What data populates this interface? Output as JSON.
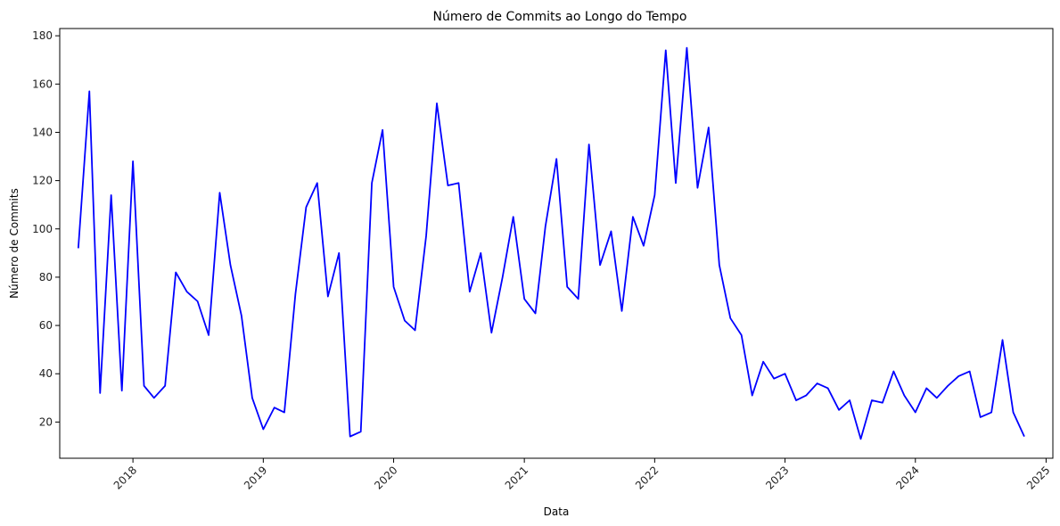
{
  "chart_data": {
    "type": "line",
    "title": "Número de Commits ao Longo do Tempo",
    "xlabel": "Data",
    "ylabel": "Número de Commits",
    "x_tick_labels": [
      "2018",
      "2019",
      "2020",
      "2021",
      "2022",
      "2023",
      "2024",
      "2025"
    ],
    "y_tick_labels": [
      "20",
      "40",
      "60",
      "80",
      "100",
      "120",
      "140",
      "160",
      "180"
    ],
    "y_ticks": [
      20,
      40,
      60,
      80,
      100,
      120,
      140,
      160,
      180
    ],
    "ylim": [
      5,
      183
    ],
    "xlim": [
      "2017-06-10",
      "2025-01-20"
    ],
    "grid": false,
    "line_color": "#0000ff",
    "series": [
      {
        "x": [
          "2017-08-01",
          "2017-09-01",
          "2017-10-01",
          "2017-11-01",
          "2017-12-01",
          "2018-01-01",
          "2018-02-01",
          "2018-03-01",
          "2018-04-01",
          "2018-05-01",
          "2018-06-01",
          "2018-07-01",
          "2018-08-01",
          "2018-09-01",
          "2018-10-01",
          "2018-11-01",
          "2018-12-01",
          "2019-01-01",
          "2019-02-01",
          "2019-03-01",
          "2019-04-01",
          "2019-05-01",
          "2019-06-01",
          "2019-07-01",
          "2019-08-01",
          "2019-09-01",
          "2019-10-01",
          "2019-11-01",
          "2019-12-01",
          "2020-01-01",
          "2020-02-01",
          "2020-03-01",
          "2020-04-01",
          "2020-05-01",
          "2020-06-01",
          "2020-07-01",
          "2020-08-01",
          "2020-09-01",
          "2020-10-01",
          "2020-11-01",
          "2020-12-01",
          "2021-01-01",
          "2021-02-01",
          "2021-03-01",
          "2021-04-01",
          "2021-05-01",
          "2021-06-01",
          "2021-07-01",
          "2021-08-01",
          "2021-09-01",
          "2021-10-01",
          "2021-11-01",
          "2021-12-01",
          "2022-01-01",
          "2022-02-01",
          "2022-03-01",
          "2022-04-01",
          "2022-05-01",
          "2022-06-01",
          "2022-07-01",
          "2022-08-01",
          "2022-09-01",
          "2022-10-01",
          "2022-11-01",
          "2022-12-01",
          "2023-01-01",
          "2023-02-01",
          "2023-03-01",
          "2023-04-01",
          "2023-05-01",
          "2023-06-01",
          "2023-07-01",
          "2023-08-01",
          "2023-09-01",
          "2023-10-01",
          "2023-11-01",
          "2023-12-01",
          "2024-01-01",
          "2024-02-01",
          "2024-03-01",
          "2024-04-01",
          "2024-05-01",
          "2024-06-01",
          "2024-07-01",
          "2024-08-01",
          "2024-09-01",
          "2024-10-01",
          "2024-11-01"
        ],
        "values": [
          92,
          157,
          32,
          114,
          33,
          128,
          35,
          30,
          35,
          82,
          74,
          70,
          56,
          115,
          85,
          64,
          30,
          17,
          26,
          24,
          73,
          109,
          119,
          72,
          90,
          14,
          16,
          119,
          141,
          76,
          62,
          58,
          97,
          152,
          118,
          119,
          74,
          90,
          57,
          80,
          105,
          71,
          65,
          101,
          129,
          76,
          71,
          135,
          85,
          99,
          66,
          105,
          93,
          114,
          174,
          119,
          175,
          117,
          142,
          85,
          63,
          56,
          31,
          45,
          38,
          40,
          29,
          31,
          36,
          34,
          25,
          29,
          13,
          29,
          28,
          41,
          31,
          24,
          34,
          30,
          35,
          39,
          41,
          22,
          24,
          54,
          24,
          14
        ]
      }
    ]
  }
}
